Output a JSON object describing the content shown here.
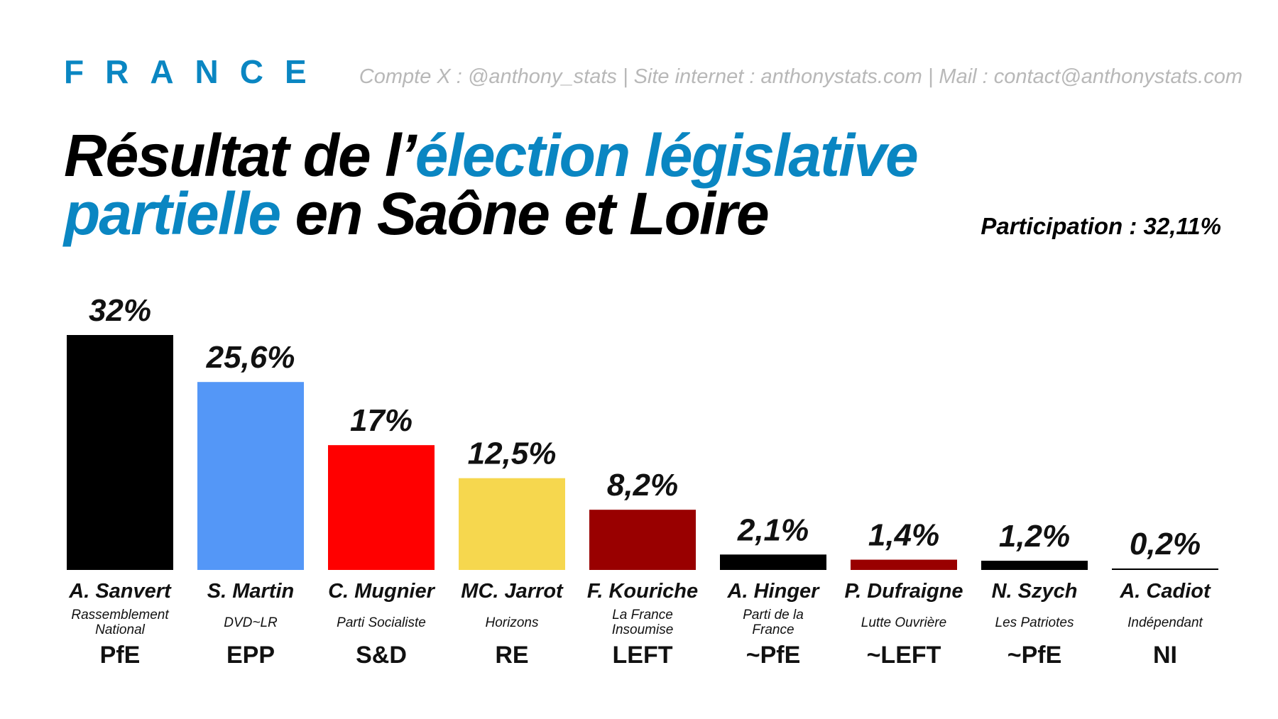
{
  "header": {
    "country": "FRANCE",
    "contact": "Compte X : @anthony_stats | Site internet : anthonystats.com | Mail : contact@anthonystats.com"
  },
  "title": {
    "part1": "Résultat de l’",
    "accent1": "élection législative",
    "accent2": "partielle",
    "part2": " en Saône et Loire"
  },
  "participation": "Participation : 32,11%",
  "colors": {
    "accent": "#0a86c2"
  },
  "chart_data": {
    "type": "bar",
    "categories": [
      "A. Sanvert",
      "S. Martin",
      "C. Mugnier",
      "MC. Jarrot",
      "F. Kouriche",
      "A. Hinger",
      "P. Dufraigne",
      "N. Szych",
      "A. Cadiot"
    ],
    "values": [
      32,
      25.6,
      17,
      12.5,
      8.2,
      2.1,
      1.4,
      1.2,
      0.2
    ],
    "value_labels": [
      "32%",
      "25,6%",
      "17%",
      "12,5%",
      "8,2%",
      "2,1%",
      "1,4%",
      "1,2%",
      "0,2%"
    ],
    "parties": [
      [
        "Rassemblement",
        "National"
      ],
      [
        "DVD~LR"
      ],
      [
        "Parti Socialiste"
      ],
      [
        "Horizons"
      ],
      [
        "La France",
        "Insoumise"
      ],
      [
        "Parti de la",
        "France"
      ],
      [
        "Lutte Ouvrière"
      ],
      [
        "Les Patriotes"
      ],
      [
        "Indépendant"
      ]
    ],
    "groups": [
      "PfE",
      "EPP",
      "S&D",
      "RE",
      "LEFT",
      "~PfE",
      "~LEFT",
      "~PfE",
      "NI"
    ],
    "colors": [
      "#000000",
      "#5497f7",
      "#ff0000",
      "#f6d74e",
      "#990000",
      "#000000",
      "#990000",
      "#000000",
      "#000000"
    ],
    "ylim": [
      0,
      32
    ]
  }
}
